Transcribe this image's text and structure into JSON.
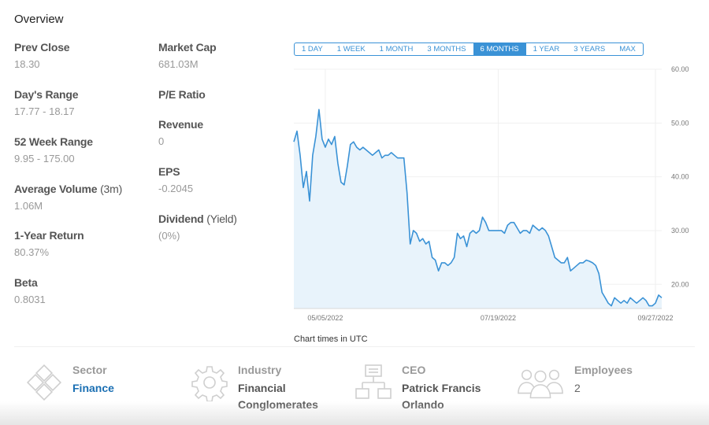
{
  "overview": {
    "title": "Overview"
  },
  "stats": {
    "prev_close": {
      "label": "Prev Close",
      "value": "18.30"
    },
    "days_range": {
      "label": "Day's Range",
      "value": "17.77 - 18.17"
    },
    "week52_range": {
      "label": "52 Week Range",
      "value": "9.95 - 175.00"
    },
    "avg_volume": {
      "label": "Average Volume",
      "label_suffix": "(3m)",
      "value": "1.06M"
    },
    "one_year_return": {
      "label": "1-Year Return",
      "value": "80.37%"
    },
    "beta": {
      "label": "Beta",
      "value": "0.8031"
    },
    "market_cap": {
      "label": "Market Cap",
      "value": "681.03M"
    },
    "pe_ratio": {
      "label": "P/E Ratio",
      "value": ""
    },
    "revenue": {
      "label": "Revenue",
      "value": "0"
    },
    "eps": {
      "label": "EPS",
      "value": "-0.2045"
    },
    "dividend": {
      "label": "Dividend",
      "label_suffix": "(Yield)",
      "value": "(0%)"
    }
  },
  "range_buttons": [
    "1 DAY",
    "1 WEEK",
    "1 MONTH",
    "3 MONTHS",
    "6 MONTHS",
    "1 YEAR",
    "3 YEARS",
    "MAX"
  ],
  "active_range": "6 MONTHS",
  "chart_note": "Chart times in UTC",
  "chart_data": {
    "type": "area",
    "y_ticks": [
      "60.00",
      "50.00",
      "40.00",
      "30.00",
      "20.00"
    ],
    "ylim": [
      15.5,
      60
    ],
    "x_ticks": [
      {
        "label": "05/05/2022",
        "index": 10
      },
      {
        "label": "07/19/2022",
        "index": 65
      },
      {
        "label": "09/27/2022",
        "index": 115
      }
    ],
    "values": [
      46.5,
      48.5,
      44,
      38,
      41,
      35.5,
      44,
      47.5,
      52.5,
      47,
      45.5,
      47,
      46,
      47.5,
      42.5,
      39,
      38.5,
      42,
      46,
      46.5,
      45.5,
      45,
      45.5,
      45,
      44.5,
      44,
      44.5,
      45,
      43.5,
      44,
      44,
      44.5,
      44,
      43.5,
      43.5,
      43.5,
      37,
      27.5,
      30,
      29.5,
      28,
      28.5,
      27.5,
      28,
      25,
      24.5,
      22.5,
      24,
      24,
      23.5,
      24,
      25,
      29.5,
      28.5,
      29,
      27,
      29.5,
      30,
      29.5,
      30,
      32.5,
      31.5,
      30,
      30,
      30,
      30,
      30,
      29.5,
      31,
      31.5,
      31.5,
      30.5,
      29.5,
      30,
      30,
      29.5,
      31,
      30.5,
      30,
      30.5,
      30,
      29,
      27,
      25,
      24.5,
      24,
      24,
      25,
      22.5,
      23,
      23.5,
      24,
      24,
      24.5,
      24.3,
      24,
      23.5,
      22,
      18.5,
      17.5,
      16.5,
      16,
      17.5,
      17,
      16.5,
      17,
      16.5,
      17.5,
      17,
      16.5,
      17,
      17.5,
      17,
      16,
      16,
      16.5,
      18,
      17.5
    ],
    "line_color": "#3a92d6",
    "fill_color": "#e8f3fb"
  },
  "info": {
    "sector": {
      "label": "Sector",
      "value": "Finance",
      "icon": "sector-icon"
    },
    "industry": {
      "label": "Industry",
      "value_line1": "Financial",
      "value_line2": "Conglomerates",
      "icon": "gear-icon"
    },
    "ceo": {
      "label": "CEO",
      "value_line1": "Patrick Francis",
      "value_line2": "Orlando",
      "icon": "org-chart-icon"
    },
    "employees": {
      "label": "Employees",
      "value": "2",
      "icon": "people-icon"
    }
  }
}
